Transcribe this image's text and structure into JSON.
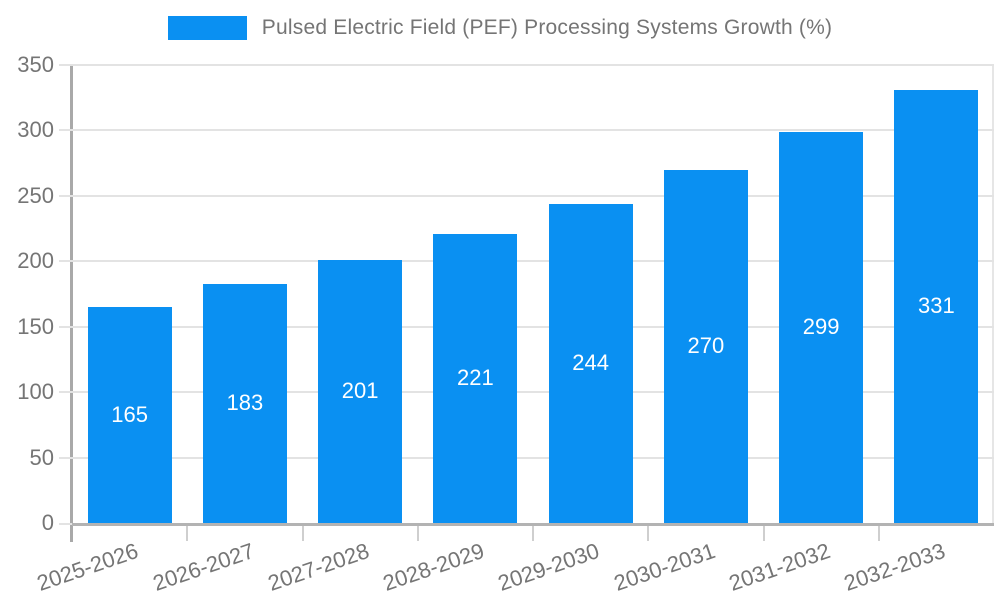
{
  "legend": {
    "label": "Pulsed Electric Field (PEF) Processing Systems Growth (%)"
  },
  "chart_data": {
    "type": "bar",
    "title": "Pulsed Electric Field (PEF) Processing Systems Growth (%)",
    "categories": [
      "2025-2026",
      "2026-2027",
      "2027-2028",
      "2028-2029",
      "2029-2030",
      "2030-2031",
      "2031-2032",
      "2032-2033"
    ],
    "values": [
      165,
      183,
      201,
      221,
      244,
      270,
      299,
      331
    ],
    "value_labels": [
      "165",
      "183",
      "201",
      "221",
      "244",
      "270",
      "299",
      "331"
    ],
    "xlabel": "",
    "ylabel": "",
    "ylim": [
      0,
      350
    ],
    "ytick_step": 50,
    "ytick_labels": [
      "0",
      "50",
      "100",
      "150",
      "200",
      "250",
      "300",
      "350"
    ],
    "grid": true,
    "legend_position": "top",
    "x_label_rotation_deg": -19
  },
  "colors": {
    "bar": "#0a90f2",
    "value_text": "#ffffff",
    "axis_text": "#757575",
    "gridline": "#e3e3e3",
    "axis_line": "#a9a9a9",
    "baseline": "#b3b3b3",
    "background": "#ffffff"
  }
}
